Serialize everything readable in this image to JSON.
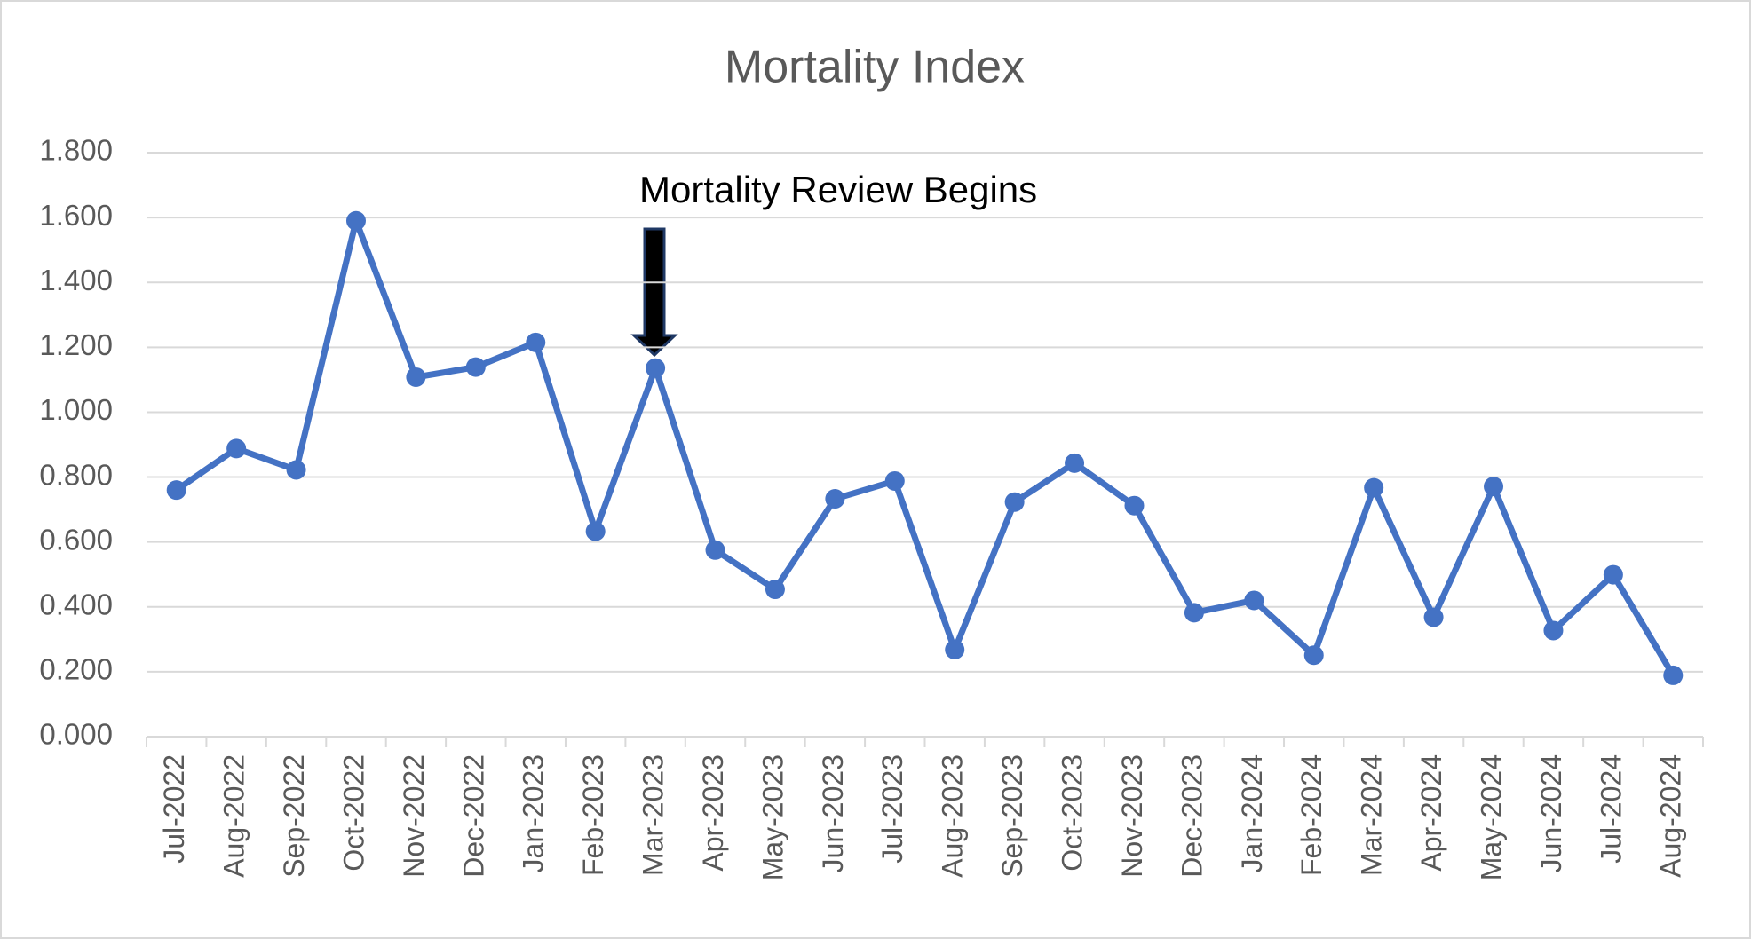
{
  "chart_data": {
    "type": "line",
    "title": "Mortality Index",
    "annotation": "Mortality Review Begins",
    "categories": [
      "Jul-2022",
      "Aug-2022",
      "Sep-2022",
      "Oct-2022",
      "Nov-2022",
      "Dec-2022",
      "Jan-2023",
      "Feb-2023",
      "Mar-2023",
      "Apr-2023",
      "May-2023",
      "Jun-2023",
      "Jul-2023",
      "Aug-2023",
      "Sep-2023",
      "Oct-2023",
      "Nov-2023",
      "Dec-2023",
      "Jan-2024",
      "Feb-2024",
      "Mar-2024",
      "Apr-2024",
      "May-2024",
      "Jun-2024",
      "Jul-2024",
      "Aug-2024"
    ],
    "values": [
      0.76,
      0.888,
      0.822,
      1.59,
      1.108,
      1.139,
      1.215,
      0.633,
      1.136,
      0.575,
      0.454,
      0.733,
      0.788,
      0.268,
      0.723,
      0.843,
      0.712,
      0.382,
      0.42,
      0.251,
      0.767,
      0.368,
      0.771,
      0.327,
      0.499,
      0.189
    ],
    "color": "#4472c4",
    "ylim": [
      0,
      1.8
    ],
    "yticks": [
      {
        "value": 0,
        "label": "0.000"
      },
      {
        "value": 0.2,
        "label": "0.200"
      },
      {
        "value": 0.4,
        "label": "0.400"
      },
      {
        "value": 0.6,
        "label": "0.600"
      },
      {
        "value": 0.8,
        "label": "0.800"
      },
      {
        "value": 1.0,
        "label": "1.000"
      },
      {
        "value": 1.2,
        "label": "1.200"
      },
      {
        "value": 1.4,
        "label": "1.400"
      },
      {
        "value": 1.6,
        "label": "1.600"
      },
      {
        "value": 1.8,
        "label": "1.800"
      }
    ],
    "grid": true
  }
}
